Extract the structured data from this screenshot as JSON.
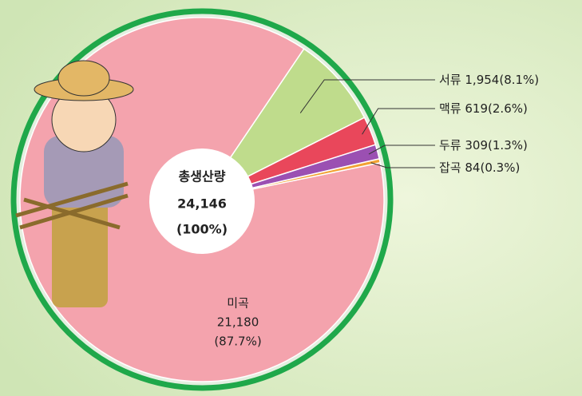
{
  "chart_data": {
    "type": "pie",
    "categories": [
      "미곡",
      "서류",
      "맥류",
      "두류",
      "잡곡"
    ],
    "values": [
      21180,
      1954,
      619,
      309,
      84
    ],
    "value_labels": [
      "21,180",
      "1,954",
      "619",
      "309",
      "84"
    ],
    "percent_labels": [
      "(87.7%)",
      "(8.1%)",
      "(2.6%)",
      "(1.3%)",
      "(0.3%)"
    ],
    "colors": [
      "#f4a3ad",
      "#bfdc8c",
      "#e9475b",
      "#9b50b2",
      "#f2a233"
    ],
    "center_label": {
      "title": "총생산량",
      "value": "24,146",
      "percent": "(100%)"
    }
  }
}
